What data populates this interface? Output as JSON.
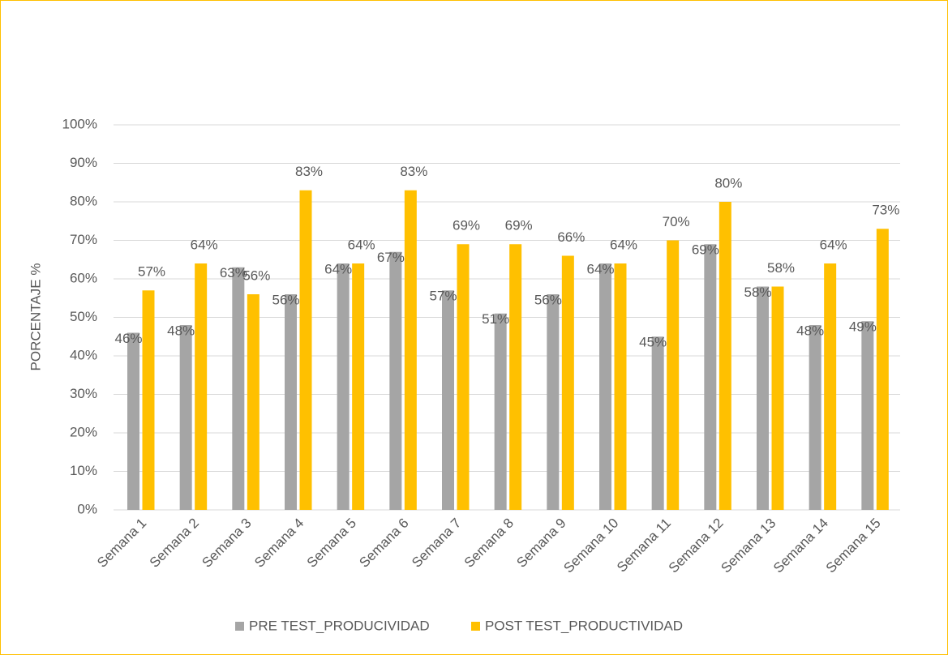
{
  "chart_data": {
    "type": "bar",
    "y_label": "PORCENTAJE %",
    "categories": [
      "Semana 1",
      "Semana 2",
      "Semana 3",
      "Semana 4",
      "Semana 5",
      "Semana 6",
      "Semana 7",
      "Semana 8",
      "Semana 9",
      "Semana 10",
      "Semana 11",
      "Semana 12",
      "Semana 13",
      "Semana 14",
      "Semana 15"
    ],
    "series": [
      {
        "name": "PRE TEST_PRODUCIVIDAD",
        "color": "#a5a5a5",
        "values": [
          46,
          48,
          63,
          56,
          64,
          67,
          57,
          51,
          56,
          64,
          45,
          69,
          58,
          48,
          49
        ],
        "value_labels": [
          "46%",
          "48%",
          "63%",
          "56%",
          "64%",
          "67%",
          "57%",
          "51%",
          "56%",
          "64%",
          "45%",
          "69%",
          "58%",
          "48%",
          "49%"
        ]
      },
      {
        "name": "POST TEST_PRODUCTIVIDAD",
        "color": "#ffc000",
        "values": [
          57,
          64,
          56,
          83,
          64,
          83,
          69,
          69,
          66,
          64,
          70,
          80,
          58,
          64,
          73
        ],
        "value_labels": [
          "57%",
          "64%",
          "56%",
          "83%",
          "64%",
          "83%",
          "69%",
          "69%",
          "66%",
          "64%",
          "70%",
          "80%",
          "58%",
          "64%",
          "73%"
        ]
      }
    ],
    "ylim": [
      0,
      100
    ],
    "yticks": [
      {
        "value": 0,
        "label": "0%"
      },
      {
        "value": 10,
        "label": "10%"
      },
      {
        "value": 20,
        "label": "20%"
      },
      {
        "value": 30,
        "label": "30%"
      },
      {
        "value": 40,
        "label": "40%"
      },
      {
        "value": 50,
        "label": "50%"
      },
      {
        "value": 60,
        "label": "60%"
      },
      {
        "value": 70,
        "label": "70%"
      },
      {
        "value": 80,
        "label": "80%"
      },
      {
        "value": 90,
        "label": "90%"
      },
      {
        "value": 100,
        "label": "100%"
      }
    ],
    "grid": true,
    "legend": "bottom"
  }
}
